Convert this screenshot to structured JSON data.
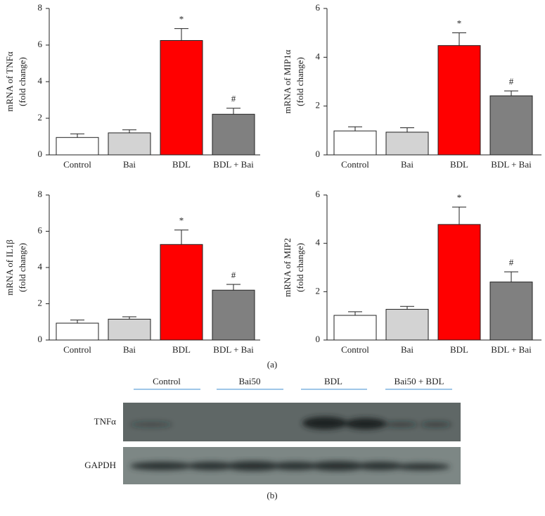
{
  "chart_data": [
    {
      "type": "bar",
      "ylabel": [
        "mRNA of TNFα",
        "(fold change)"
      ],
      "categories": [
        "Control",
        "Bai",
        "BDL",
        "BDL + Bai"
      ],
      "values": [
        0.95,
        1.2,
        6.25,
        2.22
      ],
      "errors": [
        0.2,
        0.17,
        0.65,
        0.33
      ],
      "colors": [
        "#ffffff",
        "#d3d3d3",
        "#ff0000",
        "#808080"
      ],
      "annotations": [
        null,
        null,
        "*",
        "#"
      ],
      "ylim": [
        0,
        8
      ],
      "yticks": [
        0,
        2,
        4,
        6,
        8
      ]
    },
    {
      "type": "bar",
      "ylabel": [
        "mRNA of MIP1α",
        "(fold change)"
      ],
      "categories": [
        "Control",
        "Bai",
        "BDL",
        "BDL + Bai"
      ],
      "values": [
        0.98,
        0.93,
        4.48,
        2.42
      ],
      "errors": [
        0.17,
        0.18,
        0.52,
        0.2
      ],
      "colors": [
        "#ffffff",
        "#d3d3d3",
        "#ff0000",
        "#808080"
      ],
      "annotations": [
        null,
        null,
        "*",
        "#"
      ],
      "ylim": [
        0,
        6
      ],
      "yticks": [
        0,
        2,
        4,
        6
      ]
    },
    {
      "type": "bar",
      "ylabel": [
        "mRNA of IL1β",
        "(fold change)"
      ],
      "categories": [
        "Control",
        "Bai",
        "BDL",
        "BDL + Bai"
      ],
      "values": [
        0.93,
        1.15,
        5.27,
        2.75
      ],
      "errors": [
        0.17,
        0.13,
        0.8,
        0.32
      ],
      "colors": [
        "#ffffff",
        "#d3d3d3",
        "#ff0000",
        "#808080"
      ],
      "annotations": [
        null,
        null,
        "*",
        "#"
      ],
      "ylim": [
        0,
        8
      ],
      "yticks": [
        0,
        2,
        4,
        6,
        8
      ]
    },
    {
      "type": "bar",
      "ylabel": [
        "mRNA of MIP2",
        "(fold change)"
      ],
      "categories": [
        "Control",
        "Bai",
        "BDL",
        "BDL + Bai"
      ],
      "values": [
        1.02,
        1.27,
        4.78,
        2.4
      ],
      "errors": [
        0.15,
        0.12,
        0.72,
        0.42
      ],
      "colors": [
        "#ffffff",
        "#d3d3d3",
        "#ff0000",
        "#808080"
      ],
      "annotations": [
        null,
        null,
        "*",
        "#"
      ],
      "ylim": [
        0,
        6
      ],
      "yticks": [
        0,
        2,
        4,
        6
      ]
    }
  ],
  "figure": {
    "panel_a": "(a)",
    "panel_b": "(b)",
    "lanes": [
      "Control",
      "Bai50",
      "BDL",
      "Bai50 + BDL"
    ],
    "rows": [
      "TNFα",
      "GAPDH"
    ]
  }
}
